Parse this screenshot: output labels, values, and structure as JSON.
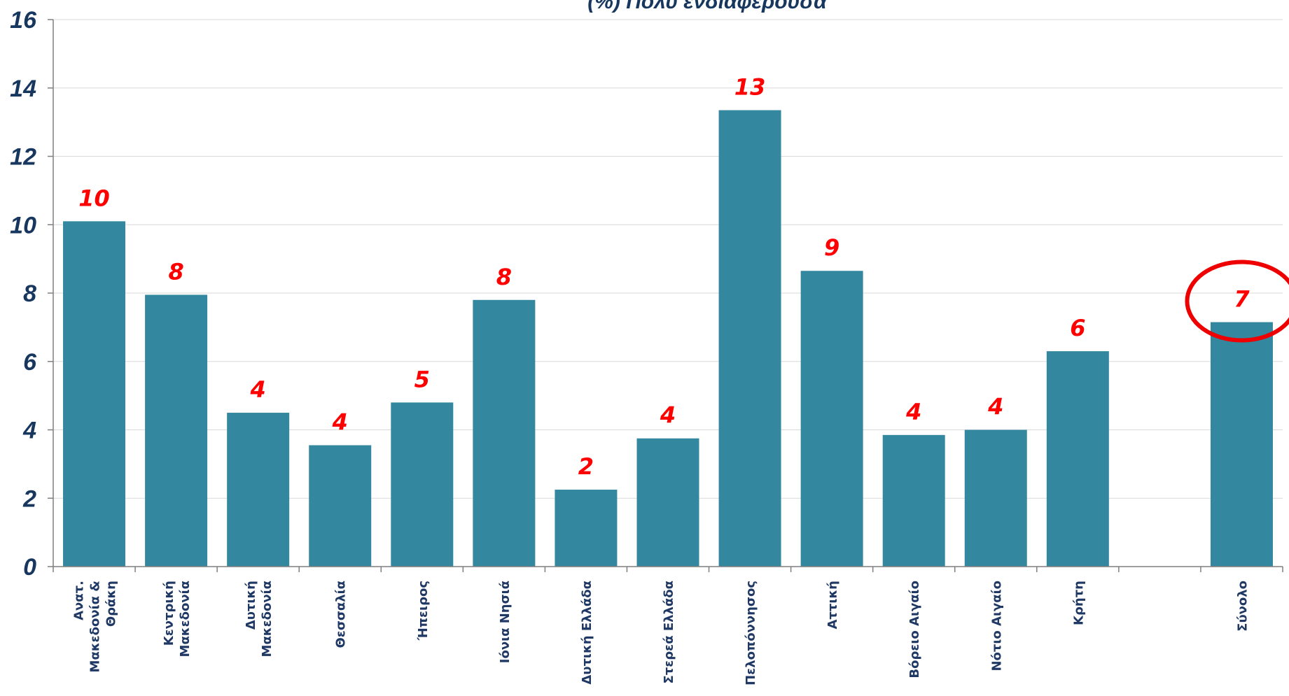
{
  "chart_data": {
    "type": "bar",
    "title": "(%) Πολύ ενδιαφέρουσα",
    "categories": [
      [
        "Ανατ.",
        "Μακεδονία &",
        "Θράκη"
      ],
      [
        "Κεντρική",
        "Μακεδονία"
      ],
      [
        "Δυτική",
        "Μακεδονία"
      ],
      [
        "Θεσσαλία"
      ],
      [
        "Ήπειρος"
      ],
      [
        "Ιόνια Νησιά"
      ],
      [
        "Δυτική Ελλάδα"
      ],
      [
        "Στερεά Ελλάδα"
      ],
      [
        "Πελοπόννησος"
      ],
      [
        "Αττική"
      ],
      [
        "Βόρειο Αιγαίο"
      ],
      [
        "Νότιο Αιγαίο"
      ],
      [
        "Κρήτη"
      ],
      [
        ""
      ],
      [
        "Σύνολο"
      ]
    ],
    "values": [
      10.1,
      7.95,
      4.5,
      3.55,
      4.8,
      7.8,
      2.25,
      3.75,
      13.35,
      8.65,
      3.85,
      4.0,
      6.3,
      null,
      7.15
    ],
    "data_labels": [
      "10",
      "8",
      "4",
      "4",
      "5",
      "8",
      "2",
      "4",
      "13",
      "9",
      "4",
      "4",
      "6",
      "",
      "7"
    ],
    "ylim": [
      0,
      16
    ],
    "yticks": [
      "0",
      "2",
      "4",
      "6",
      "8",
      "10",
      "12",
      "14",
      "16"
    ],
    "xlabel": "",
    "ylabel": "",
    "grid": true,
    "bar_color": "#33879e",
    "label_color": "#ff0000",
    "highlight_index": 14,
    "highlight_color": "#ee0000"
  }
}
